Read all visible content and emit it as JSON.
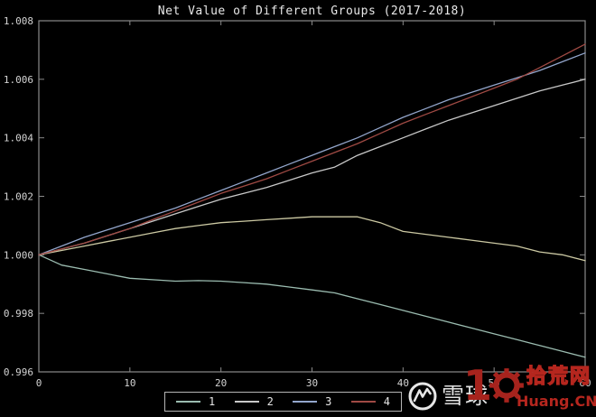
{
  "figure": {
    "background": "#000000",
    "axis_color": "#8a8a8a",
    "tick_label_color": "#d4d4d4",
    "title_color": "#e8e8e8"
  },
  "chart_data": {
    "type": "line",
    "title": "Net Value of Different Groups (2017-2018)",
    "xlabel": "",
    "ylabel": "",
    "xlim": [
      0,
      60
    ],
    "ylim": [
      0.996,
      1.008
    ],
    "x_ticks": [
      "0",
      "10",
      "20",
      "30",
      "40",
      "50",
      "60"
    ],
    "y_ticks": [
      "1.008",
      "1.006",
      "1.004",
      "1.002",
      "1.000",
      "0.998",
      "0.996"
    ],
    "grid": false,
    "legend_position": "bottom-center",
    "series": [
      {
        "name": "",
        "color": "#ccc9a3",
        "points": [
          [
            0,
            1.0
          ],
          [
            2.5,
            1.00015
          ],
          [
            5,
            1.0003
          ],
          [
            7.5,
            1.00045
          ],
          [
            10,
            1.0006
          ],
          [
            12.5,
            1.00075
          ],
          [
            15,
            1.0009
          ],
          [
            17.5,
            1.001
          ],
          [
            20,
            1.0011
          ],
          [
            22.5,
            1.00115
          ],
          [
            25,
            1.0012
          ],
          [
            27.5,
            1.00125
          ],
          [
            30,
            1.0013
          ],
          [
            32.5,
            1.0013
          ],
          [
            35,
            1.0013
          ],
          [
            37.5,
            1.0011
          ],
          [
            40,
            1.0008
          ],
          [
            42.5,
            1.0007
          ],
          [
            45,
            1.0006
          ],
          [
            47.5,
            1.0005
          ],
          [
            50,
            1.0004
          ],
          [
            52.5,
            1.0003
          ],
          [
            55,
            1.0001
          ],
          [
            57.5,
            1.0
          ],
          [
            60,
            0.9998
          ]
        ]
      },
      {
        "name": "1",
        "color": "#9bbcb0",
        "points": [
          [
            0,
            1.0
          ],
          [
            2.5,
            0.99965
          ],
          [
            5,
            0.9995
          ],
          [
            7.5,
            0.99935
          ],
          [
            10,
            0.9992
          ],
          [
            12.5,
            0.99915
          ],
          [
            15,
            0.9991
          ],
          [
            17.5,
            0.99912
          ],
          [
            20,
            0.9991
          ],
          [
            22.5,
            0.99905
          ],
          [
            25,
            0.999
          ],
          [
            27.5,
            0.9989
          ],
          [
            30,
            0.9988
          ],
          [
            32.5,
            0.9987
          ],
          [
            35,
            0.9985
          ],
          [
            37.5,
            0.9983
          ],
          [
            40,
            0.9981
          ],
          [
            42.5,
            0.9979
          ],
          [
            45,
            0.9977
          ],
          [
            47.5,
            0.9975
          ],
          [
            50,
            0.9973
          ],
          [
            52.5,
            0.9971
          ],
          [
            55,
            0.9969
          ],
          [
            57.5,
            0.9967
          ],
          [
            60,
            0.9965
          ]
        ]
      },
      {
        "name": "2",
        "color": "#c8c8c8",
        "points": [
          [
            0,
            1.0
          ],
          [
            2.5,
            1.0002
          ],
          [
            5,
            1.0004
          ],
          [
            7.5,
            1.00065
          ],
          [
            10,
            1.0009
          ],
          [
            12.5,
            1.00115
          ],
          [
            15,
            1.0014
          ],
          [
            17.5,
            1.00165
          ],
          [
            20,
            1.0019
          ],
          [
            22.5,
            1.0021
          ],
          [
            25,
            1.0023
          ],
          [
            27.5,
            1.00255
          ],
          [
            30,
            1.0028
          ],
          [
            32.5,
            1.003
          ],
          [
            35,
            1.0034
          ],
          [
            37.5,
            1.0037
          ],
          [
            40,
            1.004
          ],
          [
            42.5,
            1.0043
          ],
          [
            45,
            1.0046
          ],
          [
            47.5,
            1.00485
          ],
          [
            50,
            1.0051
          ],
          [
            52.5,
            1.00535
          ],
          [
            55,
            1.0056
          ],
          [
            57.5,
            1.0058
          ],
          [
            60,
            1.006
          ]
        ]
      },
      {
        "name": "3",
        "color": "#93a6cc",
        "points": [
          [
            0,
            1.0
          ],
          [
            2.5,
            1.0003
          ],
          [
            5,
            1.0006
          ],
          [
            7.5,
            1.00085
          ],
          [
            10,
            1.0011
          ],
          [
            12.5,
            1.00135
          ],
          [
            15,
            1.0016
          ],
          [
            17.5,
            1.0019
          ],
          [
            20,
            1.0022
          ],
          [
            22.5,
            1.0025
          ],
          [
            25,
            1.0028
          ],
          [
            27.5,
            1.0031
          ],
          [
            30,
            1.0034
          ],
          [
            32.5,
            1.0037
          ],
          [
            35,
            1.004
          ],
          [
            37.5,
            1.00435
          ],
          [
            40,
            1.0047
          ],
          [
            42.5,
            1.005
          ],
          [
            45,
            1.0053
          ],
          [
            47.5,
            1.00555
          ],
          [
            50,
            1.0058
          ],
          [
            52.5,
            1.00605
          ],
          [
            55,
            1.0063
          ],
          [
            57.5,
            1.0066
          ],
          [
            60,
            1.0069
          ]
        ]
      },
      {
        "name": "4",
        "color": "#a04a44",
        "points": [
          [
            0,
            1.0
          ],
          [
            2.5,
            1.0002
          ],
          [
            5,
            1.0004
          ],
          [
            7.5,
            1.00065
          ],
          [
            10,
            1.0009
          ],
          [
            12.5,
            1.0012
          ],
          [
            15,
            1.0015
          ],
          [
            17.5,
            1.0018
          ],
          [
            20,
            1.0021
          ],
          [
            22.5,
            1.00235
          ],
          [
            25,
            1.0026
          ],
          [
            27.5,
            1.0029
          ],
          [
            30,
            1.0032
          ],
          [
            32.5,
            1.0035
          ],
          [
            35,
            1.0038
          ],
          [
            37.5,
            1.00415
          ],
          [
            40,
            1.0045
          ],
          [
            42.5,
            1.0048
          ],
          [
            45,
            1.0051
          ],
          [
            47.5,
            1.0054
          ],
          [
            50,
            1.0057
          ],
          [
            52.5,
            1.006
          ],
          [
            55,
            1.0064
          ],
          [
            57.5,
            1.0068
          ],
          [
            60,
            1.0072
          ]
        ]
      }
    ]
  },
  "legend": {
    "items": [
      {
        "label": "1",
        "color": "#9bbcb0"
      },
      {
        "label": "2",
        "color": "#c8c8c8"
      },
      {
        "label": "3",
        "color": "#93a6cc"
      },
      {
        "label": "4",
        "color": "#a04a44"
      }
    ]
  },
  "watermark": {
    "logo": "xueqiu-snowball-logo",
    "text_white": "雪球",
    "number": "1",
    "site_name": "拾荒网",
    "site_url": "Huang.CN",
    "accent_red": "#b5261e"
  }
}
